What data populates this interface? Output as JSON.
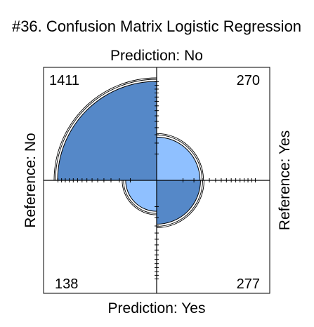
{
  "chart_data": {
    "type": "fourfold",
    "title": "#36. Confusion Matrix Logistic Regression",
    "top_label": "Prediction: No",
    "bottom_label": "Prediction: Yes",
    "left_label": "Reference: No",
    "right_label": "Reference: Yes",
    "cells": [
      {
        "quadrant": "top-left",
        "reference": "No",
        "prediction": "No",
        "value": 1411,
        "label": "1411"
      },
      {
        "quadrant": "top-right",
        "reference": "Yes",
        "prediction": "No",
        "value": 270,
        "label": "270"
      },
      {
        "quadrant": "bottom-left",
        "reference": "No",
        "prediction": "Yes",
        "value": 138,
        "label": "138"
      },
      {
        "quadrant": "bottom-right",
        "reference": "Yes",
        "prediction": "Yes",
        "value": 277,
        "label": "277"
      }
    ],
    "colors": {
      "major": "#5588c8",
      "minor": "#8fc0ff",
      "outline": "#000000",
      "background": "#ffffff"
    },
    "grid": false,
    "confidence_rings": true
  }
}
